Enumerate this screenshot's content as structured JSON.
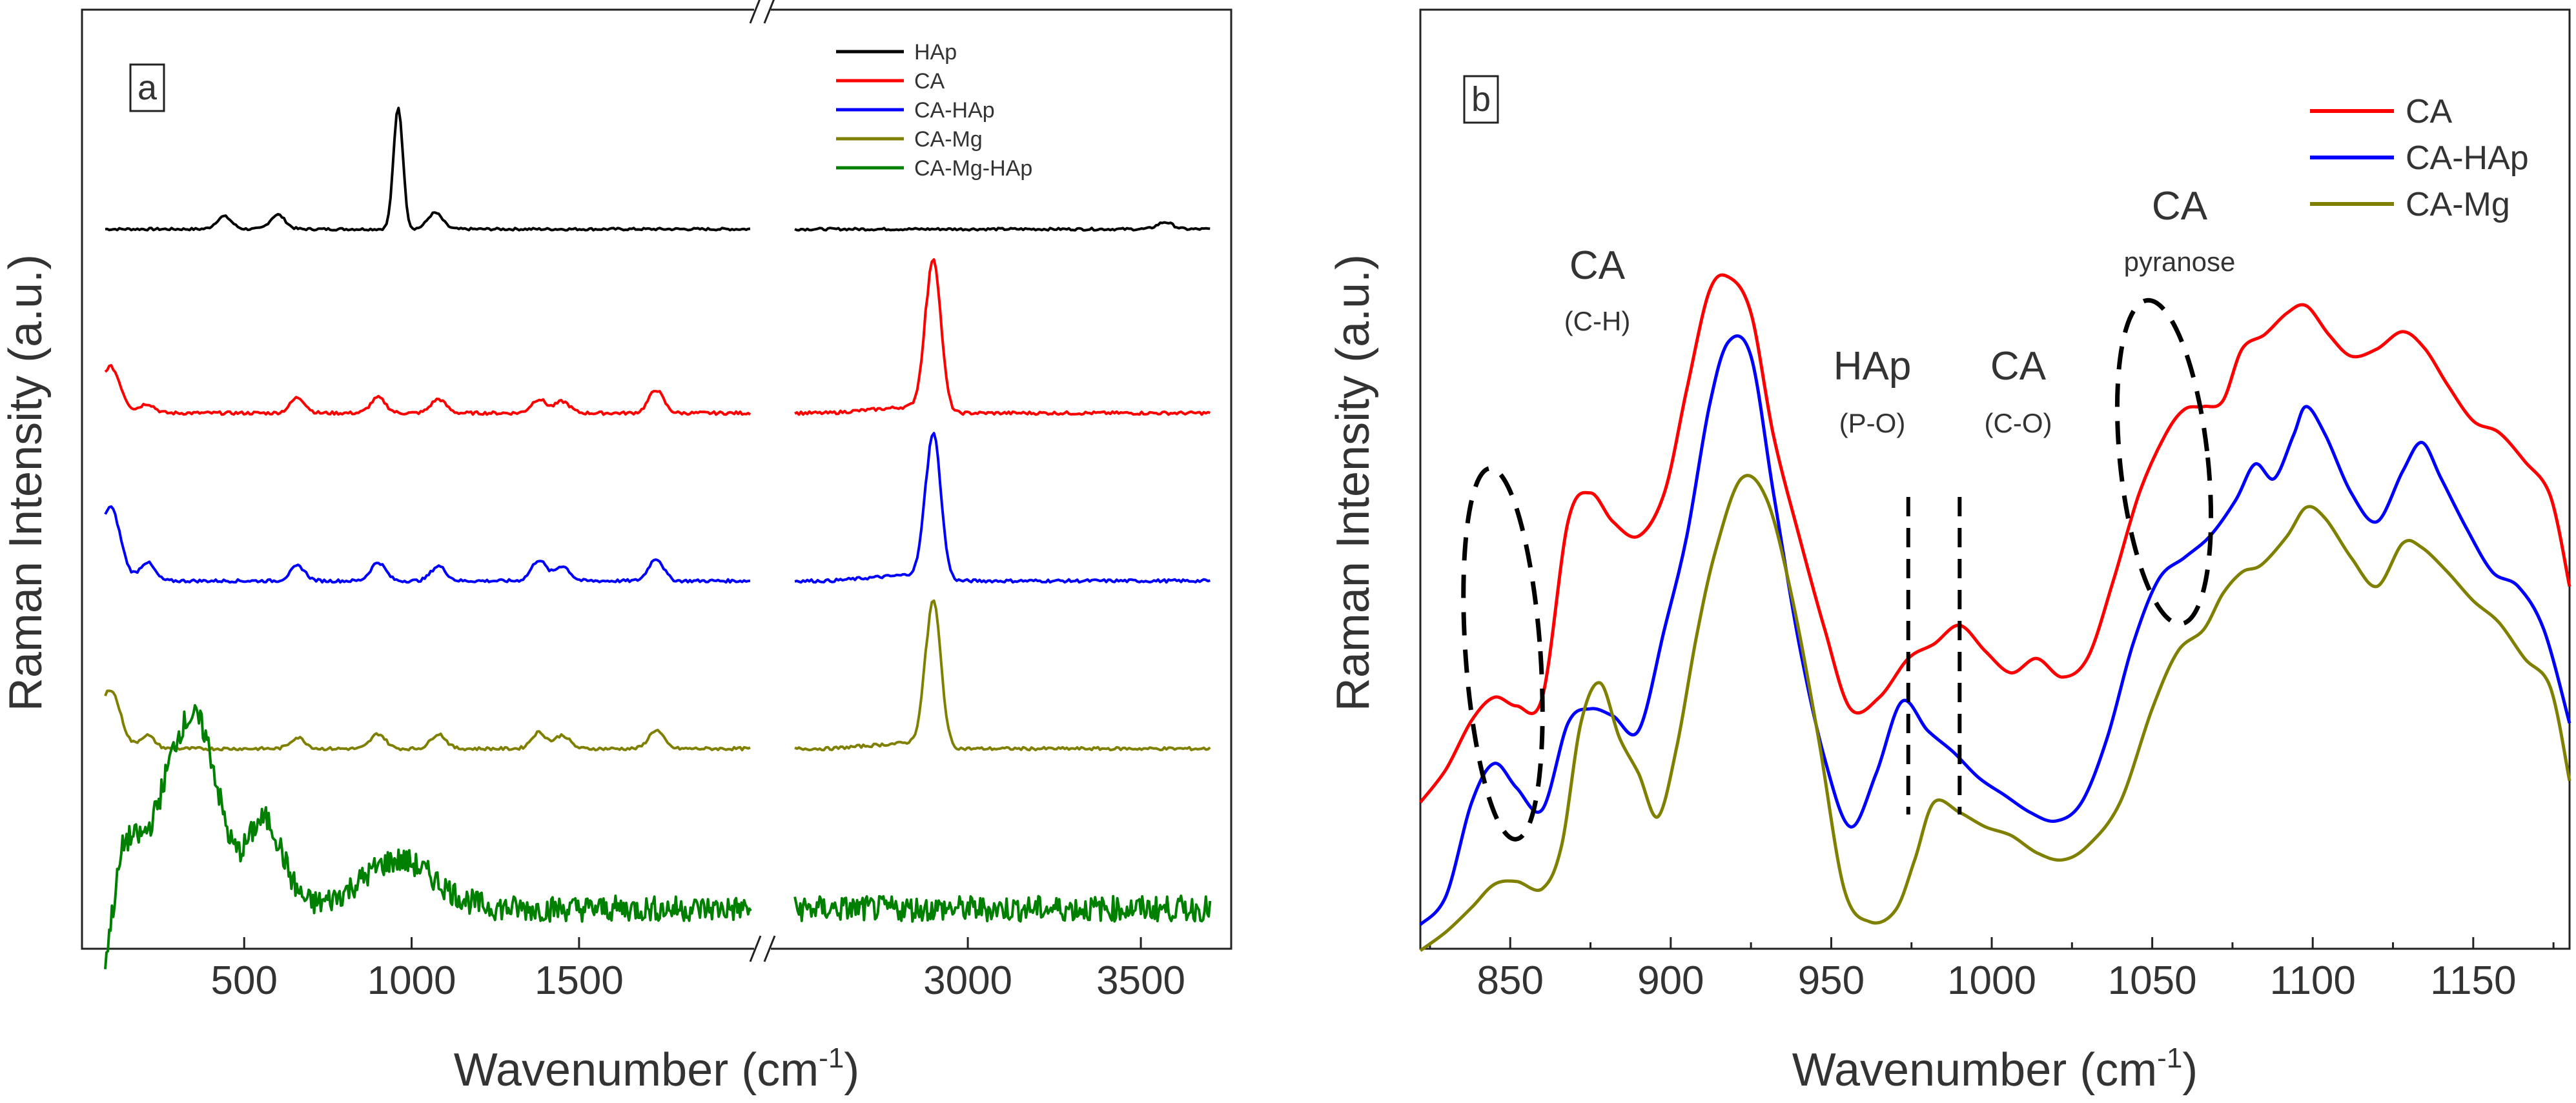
{
  "chart_data": [
    {
      "panel": "a",
      "type": "line",
      "xlabel": "Wavenumber (cm",
      "xlabel_sup": "-1",
      "xlabel_end": ")",
      "ylabel": "Raman Intensity (a.u.)",
      "xlim_left": [
        60,
        2040
      ],
      "xlim_right": [
        2470,
        3720
      ],
      "axis_break": true,
      "xticks": [
        500,
        1000,
        1500,
        3000,
        3500
      ],
      "legend_position": "top-right",
      "series": [
        {
          "name": "HAp",
          "color": "#000000",
          "peaks": [
            [
              440,
              0.22
            ],
            [
              600,
              0.25
            ],
            [
              960,
              2.1
            ],
            [
              1070,
              0.28
            ],
            [
              3570,
              0.12
            ]
          ]
        },
        {
          "name": "CA",
          "color": "#ff0000",
          "peaks": [
            [
              100,
              0.6
            ],
            [
              210,
              0.12
            ],
            [
              660,
              0.2
            ],
            [
              900,
              0.2
            ],
            [
              1080,
              0.18
            ],
            [
              1380,
              0.18
            ],
            [
              1450,
              0.15
            ],
            [
              1730,
              0.3
            ],
            [
              2900,
              2.0
            ]
          ]
        },
        {
          "name": "CA-HAp",
          "color": "#0000ff",
          "peaks": [
            [
              100,
              1.0
            ],
            [
              210,
              0.25
            ],
            [
              660,
              0.2
            ],
            [
              900,
              0.25
            ],
            [
              1080,
              0.2
            ],
            [
              1380,
              0.28
            ],
            [
              1450,
              0.2
            ],
            [
              1730,
              0.3
            ],
            [
              2900,
              2.0
            ]
          ]
        },
        {
          "name": "CA-Mg",
          "color": "#808000",
          "peaks": [
            [
              100,
              0.8
            ],
            [
              210,
              0.18
            ],
            [
              660,
              0.15
            ],
            [
              900,
              0.2
            ],
            [
              1080,
              0.2
            ],
            [
              1380,
              0.22
            ],
            [
              1450,
              0.18
            ],
            [
              1730,
              0.25
            ],
            [
              2900,
              2.0
            ]
          ]
        },
        {
          "name": "CA-Mg-HAp",
          "color": "#008000",
          "peaks": [
            [
              150,
              0.8
            ],
            [
              290,
              1.5
            ],
            [
              380,
              1.8
            ],
            [
              560,
              1.1
            ],
            [
              960,
              0.6
            ]
          ]
        }
      ]
    },
    {
      "panel": "b",
      "type": "line",
      "xlabel": "Wavenumber (cm",
      "xlabel_sup": "-1",
      "xlabel_end": ")",
      "ylabel": "Raman Intensity (a.u.)",
      "xlim": [
        822,
        1180
      ],
      "xticks": [
        850,
        900,
        950,
        1000,
        1050,
        1100,
        1150
      ],
      "legend_position": "top-right",
      "series": [
        {
          "name": "CA",
          "color": "#ff0000",
          "x": [
            822,
            830,
            838,
            845,
            852,
            860,
            868,
            875,
            882,
            890,
            898,
            905,
            912,
            918,
            925,
            932,
            940,
            948,
            956,
            965,
            974,
            982,
            990,
            998,
            1006,
            1014,
            1022,
            1030,
            1038,
            1046,
            1054,
            1060,
            1066,
            1072,
            1078,
            1085,
            1092,
            1098,
            1105,
            1112,
            1120,
            1128,
            1135,
            1142,
            1150,
            1158,
            1166,
            1174,
            1180
          ],
          "y": [
            0.95,
            1.18,
            1.52,
            1.68,
            1.62,
            1.68,
            2.9,
            3.1,
            2.9,
            2.8,
            3.1,
            3.82,
            4.5,
            4.6,
            4.35,
            3.5,
            2.8,
            2.15,
            1.6,
            1.68,
            1.95,
            2.05,
            2.18,
            2.0,
            1.85,
            1.95,
            1.82,
            1.96,
            2.5,
            3.1,
            3.5,
            3.68,
            3.7,
            3.74,
            4.1,
            4.2,
            4.35,
            4.4,
            4.2,
            4.05,
            4.1,
            4.22,
            4.1,
            3.85,
            3.6,
            3.52,
            3.32,
            3.08,
            2.45
          ]
        },
        {
          "name": "CA-HAp",
          "color": "#0000ff",
          "x": [
            822,
            830,
            838,
            845,
            852,
            860,
            868,
            875,
            882,
            890,
            898,
            905,
            912,
            918,
            925,
            932,
            940,
            948,
            956,
            964,
            972,
            980,
            988,
            996,
            1004,
            1012,
            1020,
            1028,
            1036,
            1044,
            1052,
            1060,
            1068,
            1076,
            1082,
            1088,
            1094,
            1098,
            1104,
            1112,
            1120,
            1128,
            1134,
            1140,
            1148,
            1156,
            1164,
            1172,
            1180
          ],
          "y": [
            0.1,
            0.3,
            0.95,
            1.22,
            1.05,
            0.9,
            1.5,
            1.6,
            1.55,
            1.45,
            2.15,
            2.8,
            3.7,
            4.15,
            4.05,
            3.1,
            2.05,
            1.25,
            0.78,
            1.15,
            1.65,
            1.45,
            1.3,
            1.12,
            1.0,
            0.88,
            0.82,
            0.95,
            1.4,
            2.05,
            2.5,
            2.65,
            2.8,
            3.05,
            3.3,
            3.2,
            3.5,
            3.7,
            3.5,
            3.1,
            2.9,
            3.25,
            3.45,
            3.2,
            2.85,
            2.55,
            2.45,
            2.15,
            1.5
          ]
        },
        {
          "name": "CA-Mg",
          "color": "#808000",
          "x": [
            822,
            830,
            838,
            845,
            852,
            860,
            866,
            872,
            878,
            884,
            890,
            896,
            902,
            908,
            914,
            922,
            930,
            938,
            946,
            954,
            962,
            970,
            976,
            982,
            990,
            998,
            1006,
            1014,
            1022,
            1030,
            1040,
            1050,
            1058,
            1066,
            1072,
            1078,
            1084,
            1092,
            1098,
            1104,
            1112,
            1120,
            1128,
            1134,
            1142,
            1150,
            1158,
            1166,
            1174,
            1180
          ],
          "y": [
            -0.08,
            0.05,
            0.22,
            0.38,
            0.4,
            0.35,
            0.65,
            1.5,
            1.78,
            1.4,
            1.15,
            0.85,
            1.35,
            2.1,
            2.7,
            3.2,
            3.05,
            2.35,
            1.4,
            0.35,
            0.12,
            0.2,
            0.55,
            0.95,
            0.88,
            0.78,
            0.72,
            0.6,
            0.55,
            0.65,
            0.95,
            1.6,
            2.0,
            2.15,
            2.4,
            2.55,
            2.6,
            2.8,
            3.0,
            2.92,
            2.65,
            2.45,
            2.75,
            2.72,
            2.55,
            2.35,
            2.2,
            1.95,
            1.75,
            1.1
          ]
        }
      ],
      "annotations": [
        {
          "label": "CA",
          "sub": "(C-H)"
        },
        {
          "label": "HAp",
          "sub": "(P-O)"
        },
        {
          "label": "CA",
          "sub": "(C-O)"
        },
        {
          "label": "CA",
          "sub": "pyranose"
        }
      ],
      "reference_lines": [
        974,
        990
      ]
    }
  ]
}
